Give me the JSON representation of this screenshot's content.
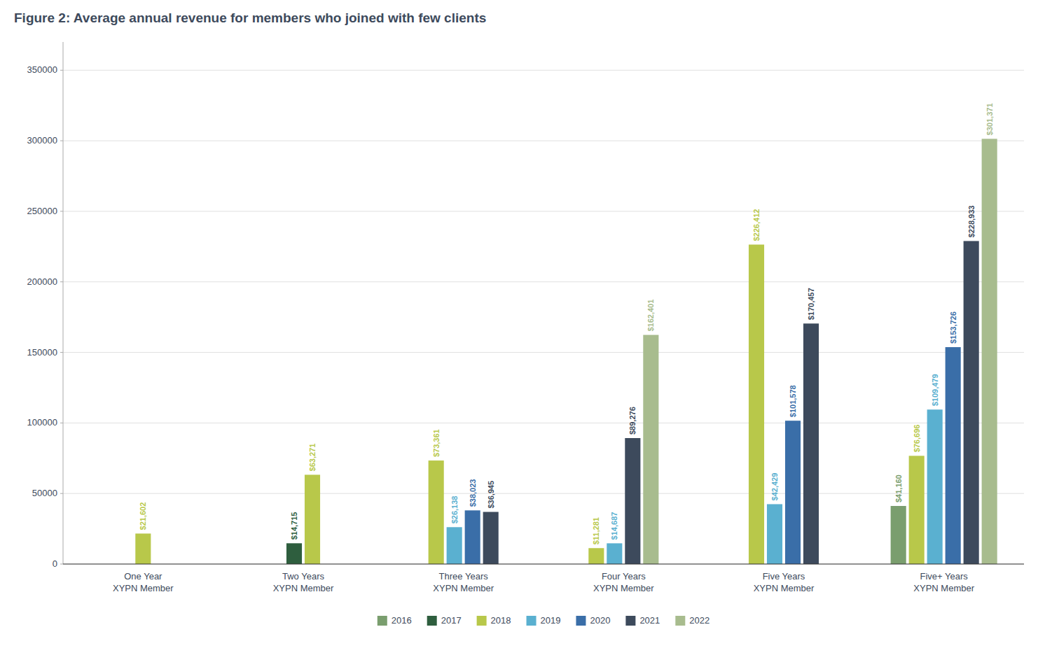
{
  "chart_data": {
    "type": "bar",
    "title": "Figure 2: Average annual revenue for members who joined with few clients",
    "categories": [
      "One Year\nXYPN Member",
      "Two Years\nXYPN Member",
      "Three Years\nXYPN Member",
      "Four Years\nXYPN Member",
      "Five Years\nXYPN Member",
      "Five+ Years\nXYPN Member"
    ],
    "series": [
      {
        "name": "2016",
        "color": "#7a9e6e",
        "values": [
          null,
          null,
          null,
          null,
          null,
          41160
        ],
        "value_labels": [
          null,
          null,
          null,
          null,
          null,
          "$41,160"
        ]
      },
      {
        "name": "2017",
        "color": "#2e5e3e",
        "values": [
          null,
          14715,
          null,
          null,
          null,
          null
        ],
        "value_labels": [
          null,
          "$14,715",
          null,
          null,
          null,
          null
        ]
      },
      {
        "name": "2018",
        "color": "#b8c84a",
        "values": [
          21602,
          63271,
          73361,
          11281,
          226412,
          76696
        ],
        "value_labels": [
          "$21,602",
          "$63,271",
          "$73,361",
          "$11,281",
          "$226,412",
          "$76,696"
        ]
      },
      {
        "name": "2019",
        "color": "#5ab0d0",
        "values": [
          null,
          null,
          26138,
          14687,
          42429,
          109479
        ],
        "value_labels": [
          null,
          null,
          "$26,138",
          "$14,687",
          "$42,429",
          "$109,479"
        ]
      },
      {
        "name": "2020",
        "color": "#3a6ea8",
        "values": [
          null,
          null,
          38023,
          null,
          101578,
          153726
        ],
        "value_labels": [
          null,
          null,
          "$38,023",
          null,
          "$101,578",
          "$153,726"
        ]
      },
      {
        "name": "2021",
        "color": "#3d4a5c",
        "values": [
          null,
          null,
          36945,
          89276,
          170457,
          228933
        ],
        "value_labels": [
          null,
          null,
          "$36,945",
          "$89,276",
          "$170,457",
          "$228,933"
        ]
      },
      {
        "name": "2022",
        "color": "#a8bc8e",
        "values": [
          null,
          null,
          null,
          162401,
          null,
          301371
        ],
        "value_labels": [
          null,
          null,
          null,
          "$162,401",
          null,
          "$301,371"
        ]
      }
    ],
    "ylim": [
      0,
      370000
    ],
    "yticks": [
      0,
      50000,
      100000,
      150000,
      200000,
      250000,
      300000,
      350000
    ],
    "grid": true,
    "data_labels": true,
    "legend": "bottom"
  }
}
